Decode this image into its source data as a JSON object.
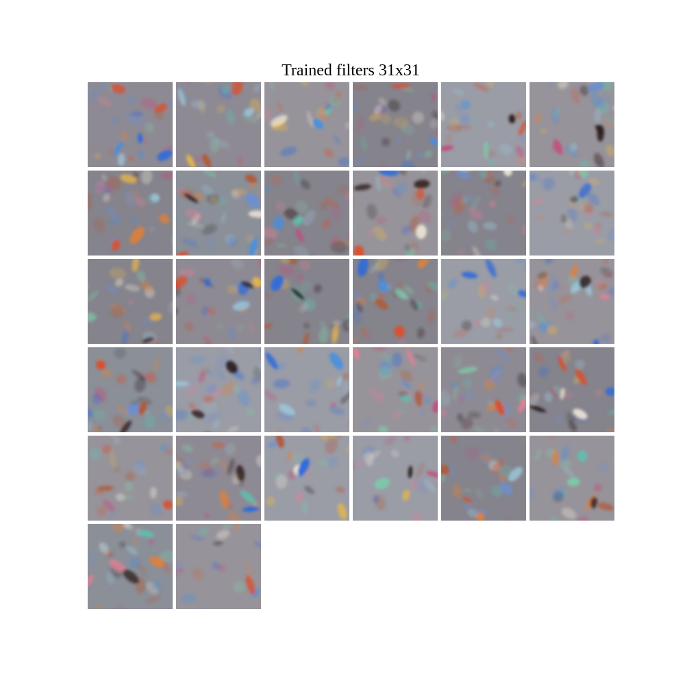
{
  "figure": {
    "title": "Trained filters 31x31"
  },
  "filters": {
    "count": 32,
    "columns": 6,
    "kernel": "31x31",
    "base_palette": [
      "#8e8a93",
      "#97939a",
      "#85838c",
      "#9a9ca6",
      "#8a8f98"
    ],
    "blob_palette": [
      "#2f6bd9",
      "#3f8fe6",
      "#d9502f",
      "#e0803a",
      "#e6b64a",
      "#5ec0b0",
      "#7fc7a8",
      "#c44a7a",
      "#e47f95",
      "#2a1b1b",
      "#f1ead8",
      "#6b8fd0",
      "#9bc5d9",
      "#b05a3a"
    ]
  }
}
